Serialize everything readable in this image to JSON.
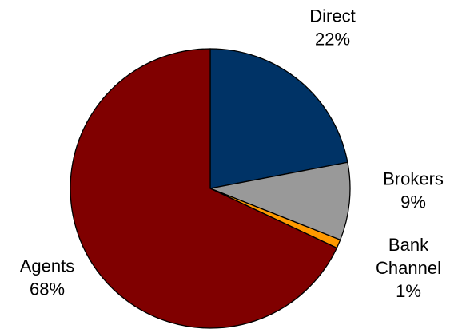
{
  "chart_data": {
    "type": "pie",
    "title": "",
    "start_angle_deg": 0,
    "direction": "clockwise",
    "slices": [
      {
        "name": "Direct",
        "label_lines": [
          "Direct"
        ],
        "value": 22,
        "value_label": "22%",
        "color": "#003366"
      },
      {
        "name": "Brokers",
        "label_lines": [
          "Brokers"
        ],
        "value": 9,
        "value_label": "9%",
        "color": "#999999"
      },
      {
        "name": "Bank Channel",
        "label_lines": [
          "Bank",
          "Channel"
        ],
        "value": 1,
        "value_label": "1%",
        "color": "#FF9900"
      },
      {
        "name": "Agents",
        "label_lines": [
          "Agents"
        ],
        "value": 68,
        "value_label": "68%",
        "color": "#800000"
      }
    ]
  }
}
